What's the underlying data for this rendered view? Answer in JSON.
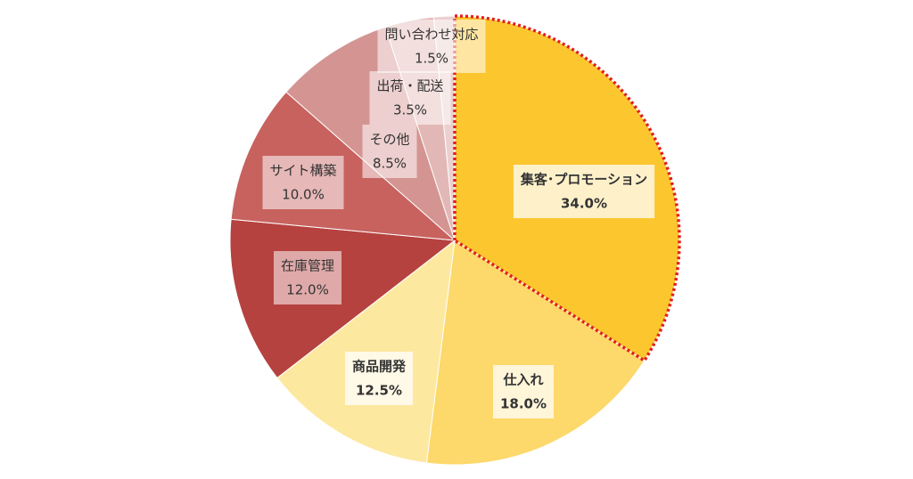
{
  "chart_data": {
    "type": "pie",
    "categories": [
      "集客･プロモーション",
      "仕入れ",
      "商品開発",
      "在庫管理",
      "サイト構築",
      "その他",
      "出荷・配送",
      "問い合わせ対応"
    ],
    "values": [
      34.0,
      18.0,
      12.5,
      12.0,
      10.0,
      8.5,
      3.5,
      1.5
    ],
    "value_labels": [
      "34.0%",
      "18.0%",
      "12.5%",
      "12.0%",
      "10.0%",
      "8.5%",
      "3.5%",
      "1.5%"
    ],
    "colors": [
      "#fcc62f",
      "#fdd86a",
      "#fde8a0",
      "#b5423f",
      "#c7625f",
      "#d49592",
      "#e2b8b6",
      "#ebd0cf"
    ],
    "highlight": 0,
    "highlight_color": "#e0201b"
  }
}
